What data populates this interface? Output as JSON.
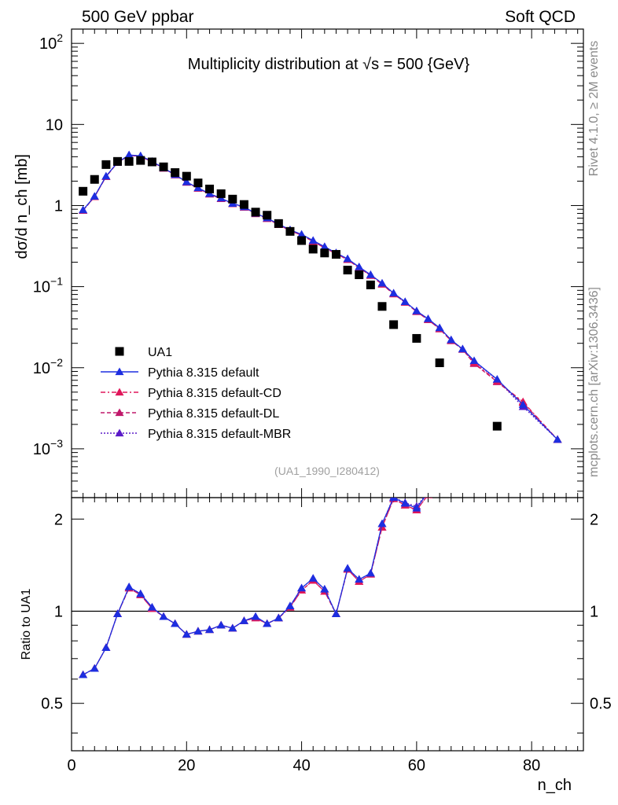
{
  "header": {
    "left": "500 GeV ppbar",
    "right": "Soft QCD"
  },
  "side_labels": {
    "rivet": "Rivet 4.1.0, ≥ 2M events",
    "mcplots": "mcplots.cern.ch [arXiv:1306.3436]"
  },
  "chart_data": {
    "type": "scatter",
    "title": "Multiplicity distribution at √s = 500 {GeV}",
    "analysis_tag": "(UA1_1990_I280412)",
    "xlabel": "n_ch",
    "ylabel": "dσ/d n_ch [mb]",
    "ratio_ylabel": "Ratio to UA1",
    "xlim": [
      0,
      89
    ],
    "ylim": [
      0.00025,
      150
    ],
    "yscale": "log",
    "ratio_ylim": [
      0.35,
      2.35
    ],
    "ratio_yscale": "log",
    "x_ticks": [
      "0",
      "20",
      "40",
      "60",
      "80"
    ],
    "y_ticks": [
      "10^-3",
      "10^-2",
      "10^-1",
      "1",
      "10",
      "10^2"
    ],
    "ratio_y_ticks": [
      "0.5",
      "1",
      "2"
    ],
    "legend_position": "lower-left",
    "data": {
      "name": "UA1",
      "x": [
        2,
        4,
        6,
        8,
        10,
        12,
        14,
        16,
        18,
        20,
        22,
        24,
        26,
        28,
        30,
        32,
        34,
        36,
        38,
        40,
        42,
        44,
        46,
        48,
        50,
        52,
        54,
        56,
        60,
        64,
        74
      ],
      "y": [
        1.5,
        2.1,
        3.2,
        3.5,
        3.5,
        3.6,
        3.45,
        3.0,
        2.55,
        2.3,
        1.9,
        1.6,
        1.4,
        1.2,
        1.03,
        0.83,
        0.76,
        0.6,
        0.48,
        0.37,
        0.29,
        0.26,
        0.25,
        0.16,
        0.14,
        0.105,
        0.057,
        0.034,
        0.023,
        0.0115,
        0.0019
      ]
    },
    "series": [
      {
        "name": "Pythia 8.315 default",
        "style": "solid",
        "color": "#1d2ee0",
        "x": [
          2,
          4,
          6,
          8,
          10,
          12,
          14,
          16,
          18,
          20,
          22,
          24,
          26,
          28,
          30,
          32,
          34,
          36,
          38,
          40,
          42,
          44,
          46,
          48,
          50,
          52,
          54,
          56,
          58,
          60,
          62,
          64,
          66,
          68,
          70,
          74,
          78.5,
          84.5
        ],
        "y": [
          0.88,
          1.3,
          2.3,
          3.4,
          4.2,
          4.1,
          3.5,
          2.9,
          2.4,
          1.95,
          1.65,
          1.4,
          1.23,
          1.06,
          0.96,
          0.8,
          0.7,
          0.59,
          0.5,
          0.44,
          0.37,
          0.31,
          0.26,
          0.22,
          0.175,
          0.14,
          0.11,
          0.083,
          0.065,
          0.05,
          0.04,
          0.031,
          0.022,
          0.017,
          0.0122,
          0.0072,
          0.0035,
          0.0013
        ],
        "ratio": [
          0.62,
          0.65,
          0.76,
          0.98,
          1.2,
          1.14,
          1.03,
          0.96,
          0.91,
          0.84,
          0.86,
          0.87,
          0.9,
          0.88,
          0.93,
          0.96,
          0.91,
          0.95,
          1.04,
          1.19,
          1.28,
          1.18,
          0.98,
          1.38,
          1.27,
          1.33,
          1.93,
          2.35,
          2.25,
          2.17,
          2.45
        ]
      },
      {
        "name": "Pythia 8.315 default-CD",
        "style": "dashdot",
        "color": "#e0165a",
        "x": [
          2,
          4,
          6,
          8,
          10,
          12,
          14,
          16,
          18,
          20,
          22,
          24,
          26,
          28,
          30,
          32,
          34,
          36,
          38,
          40,
          42,
          44,
          46,
          48,
          50,
          52,
          54,
          56,
          58,
          60,
          62,
          64,
          66,
          68,
          70,
          74,
          78.5,
          84.5
        ],
        "y": [
          0.87,
          1.28,
          2.27,
          3.38,
          4.15,
          4.05,
          3.45,
          2.88,
          2.38,
          1.93,
          1.63,
          1.38,
          1.21,
          1.05,
          0.95,
          0.79,
          0.69,
          0.58,
          0.49,
          0.43,
          0.36,
          0.3,
          0.255,
          0.215,
          0.17,
          0.137,
          0.107,
          0.081,
          0.064,
          0.049,
          0.039,
          0.03,
          0.0215,
          0.0168,
          0.0115,
          0.0068,
          0.0038,
          0.0013
        ],
        "ratio": [
          0.62,
          0.65,
          0.76,
          0.98,
          1.19,
          1.13,
          1.02,
          0.96,
          0.91,
          0.84,
          0.86,
          0.87,
          0.9,
          0.88,
          0.93,
          0.95,
          0.91,
          0.95,
          1.03,
          1.17,
          1.26,
          1.16,
          0.98,
          1.37,
          1.25,
          1.32,
          1.88,
          2.33,
          2.22,
          2.14,
          2.4
        ]
      },
      {
        "name": "Pythia 8.315 default-DL",
        "style": "dashed",
        "color": "#c0186a",
        "x": [
          2,
          4,
          6,
          8,
          10,
          12,
          14,
          16,
          18,
          20,
          22,
          24,
          26,
          28,
          30,
          32,
          34,
          36,
          38,
          40,
          42,
          44,
          46,
          48,
          50,
          52,
          54,
          56,
          58,
          60,
          62,
          64,
          66,
          68,
          70,
          74,
          78.5,
          84.5
        ],
        "y": [
          0.87,
          1.28,
          2.27,
          3.38,
          4.15,
          4.05,
          3.45,
          2.88,
          2.38,
          1.93,
          1.63,
          1.38,
          1.21,
          1.05,
          0.95,
          0.79,
          0.69,
          0.58,
          0.49,
          0.43,
          0.36,
          0.3,
          0.255,
          0.215,
          0.17,
          0.137,
          0.107,
          0.081,
          0.064,
          0.049,
          0.039,
          0.03,
          0.0215,
          0.0168,
          0.0112,
          0.0067,
          0.0037,
          0.0013
        ],
        "ratio": [
          0.62,
          0.65,
          0.76,
          0.98,
          1.19,
          1.13,
          1.02,
          0.96,
          0.91,
          0.84,
          0.86,
          0.87,
          0.9,
          0.88,
          0.93,
          0.95,
          0.91,
          0.95,
          1.03,
          1.17,
          1.26,
          1.16,
          0.98,
          1.37,
          1.25,
          1.32,
          1.88,
          2.33,
          2.22,
          2.14,
          2.4
        ]
      },
      {
        "name": "Pythia 8.315 default-MBR",
        "style": "dotted",
        "color": "#5a1ac8",
        "x": [
          2,
          4,
          6,
          8,
          10,
          12,
          14,
          16,
          18,
          20,
          22,
          24,
          26,
          28,
          30,
          32,
          34,
          36,
          38,
          40,
          42,
          44,
          46,
          48,
          50,
          52,
          54,
          56,
          58,
          60,
          62,
          64,
          66,
          68,
          70,
          74,
          78.5,
          84.5
        ],
        "y": [
          0.88,
          1.29,
          2.29,
          3.4,
          4.2,
          4.08,
          3.48,
          2.9,
          2.4,
          1.95,
          1.65,
          1.4,
          1.22,
          1.06,
          0.96,
          0.8,
          0.7,
          0.59,
          0.5,
          0.44,
          0.37,
          0.31,
          0.26,
          0.22,
          0.174,
          0.14,
          0.11,
          0.083,
          0.065,
          0.05,
          0.04,
          0.031,
          0.022,
          0.017,
          0.012,
          0.0071,
          0.0033,
          0.0013
        ],
        "ratio": [
          0.62,
          0.65,
          0.76,
          0.98,
          1.2,
          1.14,
          1.03,
          0.96,
          0.91,
          0.84,
          0.86,
          0.87,
          0.9,
          0.88,
          0.93,
          0.96,
          0.91,
          0.95,
          1.04,
          1.19,
          1.28,
          1.18,
          0.98,
          1.38,
          1.27,
          1.33,
          1.93,
          2.36,
          2.26,
          2.2,
          2.45
        ]
      }
    ]
  }
}
